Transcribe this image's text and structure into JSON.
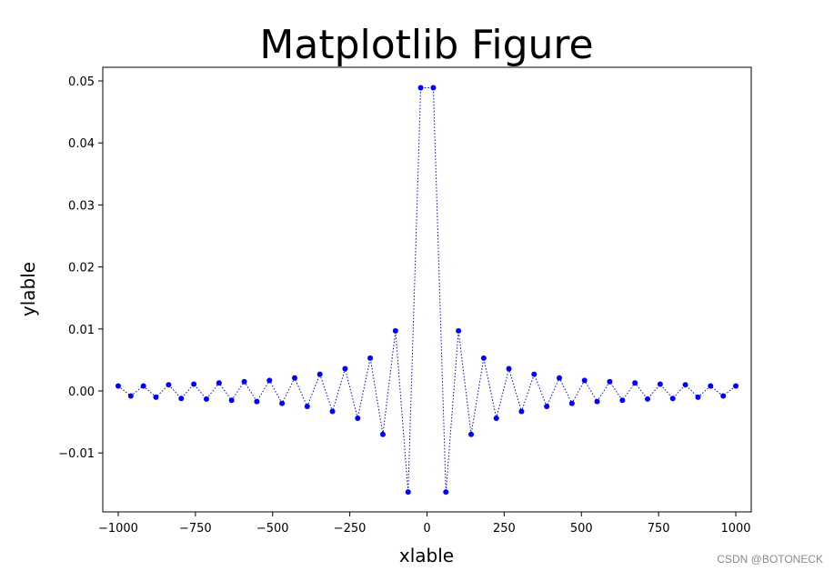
{
  "chart_data": {
    "type": "line",
    "title": "Matplotlib Figure",
    "xlabel": "xlable",
    "ylabel": "ylable",
    "xlim": [
      -1050,
      1050
    ],
    "ylim": [
      -0.0195,
      0.0522
    ],
    "grid": false,
    "line_style": "dotted",
    "marker": "circle",
    "color": "#0000ff",
    "xticks": [
      -1000,
      -750,
      -500,
      -250,
      0,
      250,
      500,
      750,
      1000
    ],
    "xtick_labels": [
      "−1000",
      "−750",
      "−500",
      "−250",
      "0",
      "250",
      "500",
      "750",
      "1000"
    ],
    "yticks": [
      -0.01,
      0.0,
      0.01,
      0.02,
      0.03,
      0.04,
      0.05
    ],
    "ytick_labels": [
      "−0.01",
      "0.00",
      "0.01",
      "0.02",
      "0.03",
      "0.04",
      "0.05"
    ],
    "series": [
      {
        "x": [
          -1000,
          -959.2,
          -918.4,
          -877.6,
          -836.7,
          -795.9,
          -755.1,
          -714.3,
          -673.5,
          -632.7,
          -591.8,
          -551.0,
          -510.2,
          -469.4,
          -428.6,
          -387.8,
          -346.9,
          -306.1,
          -265.3,
          -224.5,
          -183.7,
          -142.9,
          -102.0,
          -61.2,
          -20.4,
          20.4,
          61.2,
          102.0,
          142.9,
          183.7,
          224.5,
          265.3,
          306.1,
          346.9,
          387.8,
          428.6,
          469.4,
          510.2,
          551.0,
          591.8,
          632.7,
          673.5,
          714.3,
          755.1,
          795.9,
          836.7,
          877.6,
          918.4,
          959.2,
          1000
        ],
        "y": [
          0.0008,
          -0.0008,
          0.0008,
          -0.001,
          0.001,
          -0.0012,
          0.0011,
          -0.0013,
          0.0013,
          -0.0015,
          0.0015,
          -0.0017,
          0.0017,
          -0.002,
          0.0021,
          -0.0025,
          0.0027,
          -0.0033,
          0.0036,
          -0.0044,
          0.0053,
          -0.007,
          0.0097,
          -0.0163,
          0.0489,
          0.0489,
          -0.0163,
          0.0097,
          -0.007,
          0.0053,
          -0.0044,
          0.0036,
          -0.0033,
          0.0027,
          -0.0025,
          0.0021,
          -0.002,
          0.0017,
          -0.0017,
          0.0015,
          -0.0015,
          0.0013,
          -0.0013,
          0.0011,
          -0.0012,
          0.001,
          -0.001,
          0.0008,
          -0.0008,
          0.0008
        ]
      }
    ]
  },
  "watermark": "CSDN @BOTONECK"
}
